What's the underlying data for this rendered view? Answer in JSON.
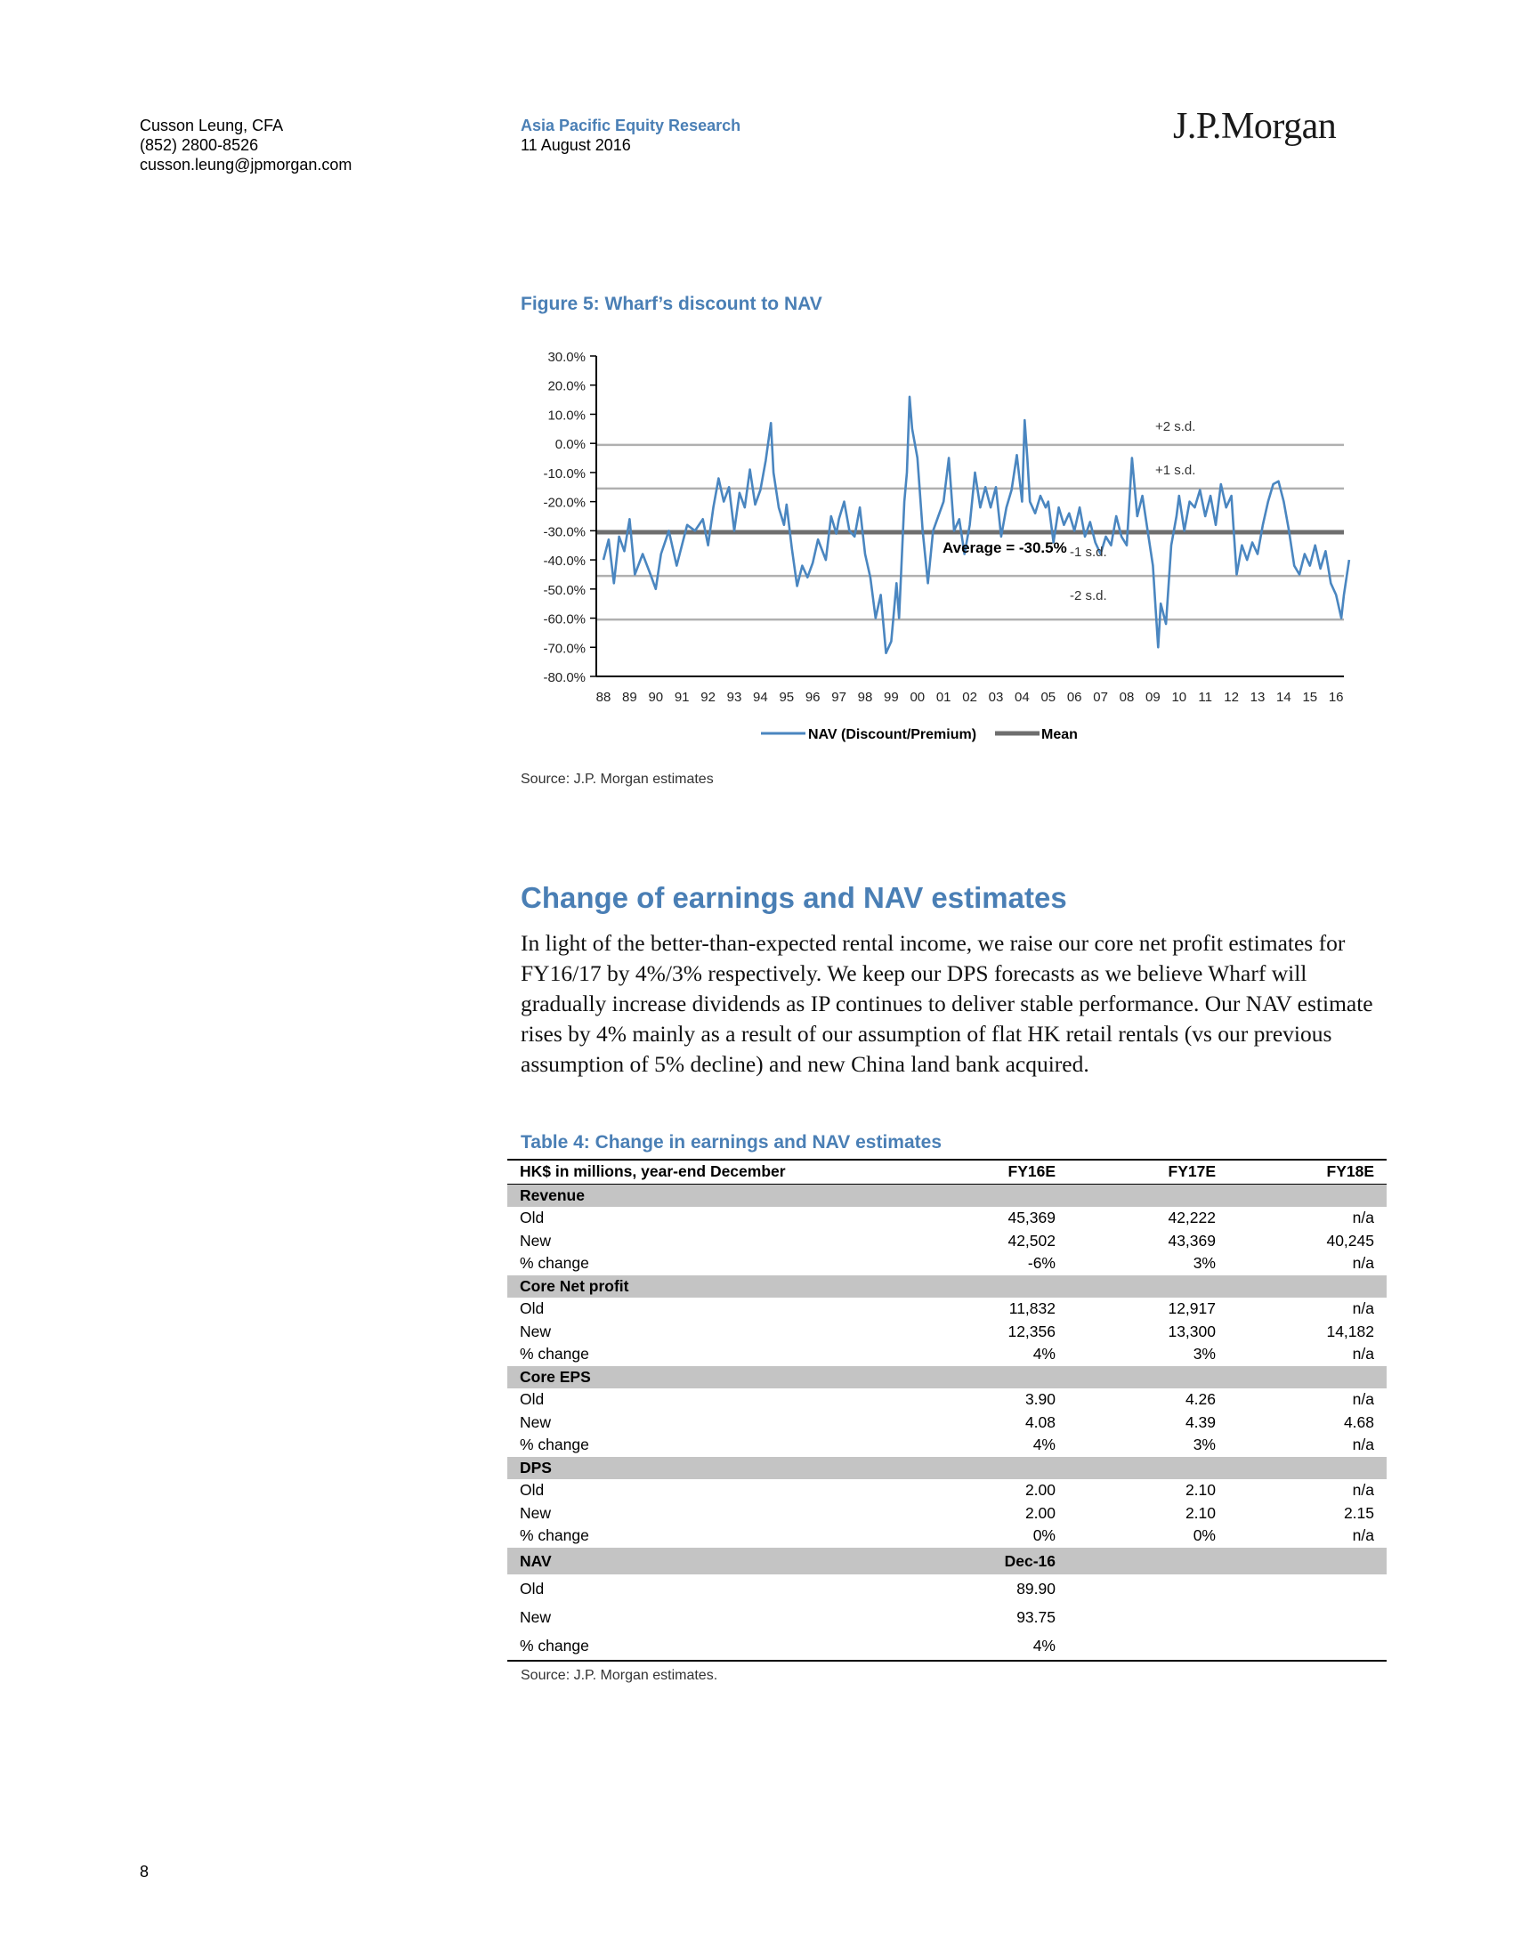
{
  "header": {
    "author": "Cusson Leung, CFA",
    "phone": "(852) 2800-8526",
    "email": "cusson.leung@jpmorgan.com",
    "department": "Asia Pacific Equity Research",
    "date": "11 August 2016",
    "logo_text": "J.P.Morgan"
  },
  "figure": {
    "title": "Figure 5: Wharf’s discount to NAV",
    "source": "Source: J.P. Morgan estimates"
  },
  "chart_data": {
    "type": "line",
    "ylim": [
      -80,
      30
    ],
    "y_ticks": [
      "30.0%",
      "20.0%",
      "10.0%",
      "0.0%",
      "-10.0%",
      "-20.0%",
      "-30.0%",
      "-40.0%",
      "-50.0%",
      "-60.0%",
      "-70.0%",
      "-80.0%"
    ],
    "x_ticks": [
      "88",
      "89",
      "90",
      "91",
      "92",
      "93",
      "94",
      "95",
      "96",
      "97",
      "98",
      "99",
      "00",
      "01",
      "02",
      "03",
      "04",
      "05",
      "06",
      "07",
      "08",
      "09",
      "10",
      "11",
      "12",
      "13",
      "14",
      "15",
      "16"
    ],
    "xlim": [
      1988,
      2016.5
    ],
    "bands": [
      {
        "label": "+2 s.d.",
        "value": -0.5
      },
      {
        "label": "+1 s.d.",
        "value": -15.5
      },
      {
        "label": "-1 s.d.",
        "value": -45.5
      },
      {
        "label": "-2 s.d.",
        "value": -60.5
      }
    ],
    "mean": {
      "value": -30.5,
      "label": "Average = -30.5%"
    },
    "legend": [
      "NAV (Discount/Premium)",
      "Mean"
    ],
    "legend_position": "bottom",
    "colors": {
      "series": "#4a86c0",
      "mean": "#6e6e6e",
      "band": "#b0b0b0"
    },
    "series": [
      {
        "name": "NAV (Discount/Premium)",
        "points": [
          [
            1988.0,
            -40
          ],
          [
            1988.2,
            -33
          ],
          [
            1988.4,
            -48
          ],
          [
            1988.6,
            -32
          ],
          [
            1988.8,
            -37
          ],
          [
            1989.0,
            -26
          ],
          [
            1989.2,
            -45
          ],
          [
            1989.5,
            -38
          ],
          [
            1989.8,
            -45
          ],
          [
            1990.0,
            -50
          ],
          [
            1990.2,
            -38
          ],
          [
            1990.5,
            -30
          ],
          [
            1990.8,
            -42
          ],
          [
            1991.0,
            -35
          ],
          [
            1991.2,
            -28
          ],
          [
            1991.5,
            -30
          ],
          [
            1991.8,
            -26
          ],
          [
            1992.0,
            -35
          ],
          [
            1992.2,
            -22
          ],
          [
            1992.4,
            -12
          ],
          [
            1992.6,
            -20
          ],
          [
            1992.8,
            -15
          ],
          [
            1993.0,
            -30
          ],
          [
            1993.2,
            -17
          ],
          [
            1993.4,
            -22
          ],
          [
            1993.6,
            -9
          ],
          [
            1993.8,
            -21
          ],
          [
            1994.0,
            -16
          ],
          [
            1994.2,
            -6
          ],
          [
            1994.4,
            7
          ],
          [
            1994.5,
            -10
          ],
          [
            1994.7,
            -22
          ],
          [
            1994.9,
            -28
          ],
          [
            1995.0,
            -21
          ],
          [
            1995.2,
            -36
          ],
          [
            1995.4,
            -49
          ],
          [
            1995.6,
            -42
          ],
          [
            1995.8,
            -46
          ],
          [
            1996.0,
            -41
          ],
          [
            1996.2,
            -33
          ],
          [
            1996.5,
            -40
          ],
          [
            1996.7,
            -25
          ],
          [
            1996.9,
            -31
          ],
          [
            1997.0,
            -26
          ],
          [
            1997.2,
            -20
          ],
          [
            1997.4,
            -30
          ],
          [
            1997.6,
            -32
          ],
          [
            1997.8,
            -22
          ],
          [
            1998.0,
            -38
          ],
          [
            1998.2,
            -46
          ],
          [
            1998.4,
            -60
          ],
          [
            1998.6,
            -52
          ],
          [
            1998.8,
            -72
          ],
          [
            1999.0,
            -68
          ],
          [
            1999.2,
            -48
          ],
          [
            1999.3,
            -60
          ],
          [
            1999.5,
            -20
          ],
          [
            1999.6,
            -10
          ],
          [
            1999.7,
            16
          ],
          [
            1999.8,
            5
          ],
          [
            2000.0,
            -5
          ],
          [
            2000.2,
            -30
          ],
          [
            2000.4,
            -48
          ],
          [
            2000.6,
            -30
          ],
          [
            2000.8,
            -25
          ],
          [
            2001.0,
            -20
          ],
          [
            2001.2,
            -5
          ],
          [
            2001.4,
            -30
          ],
          [
            2001.6,
            -26
          ],
          [
            2001.8,
            -38
          ],
          [
            2002.0,
            -28
          ],
          [
            2002.2,
            -10
          ],
          [
            2002.4,
            -22
          ],
          [
            2002.6,
            -15
          ],
          [
            2002.8,
            -22
          ],
          [
            2003.0,
            -15
          ],
          [
            2003.2,
            -32
          ],
          [
            2003.4,
            -22
          ],
          [
            2003.6,
            -16
          ],
          [
            2003.8,
            -4
          ],
          [
            2004.0,
            -20
          ],
          [
            2004.1,
            8
          ],
          [
            2004.2,
            -5
          ],
          [
            2004.3,
            -20
          ],
          [
            2004.5,
            -24
          ],
          [
            2004.7,
            -18
          ],
          [
            2004.9,
            -22
          ],
          [
            2005.0,
            -20
          ],
          [
            2005.2,
            -34
          ],
          [
            2005.4,
            -22
          ],
          [
            2005.6,
            -28
          ],
          [
            2005.8,
            -24
          ],
          [
            2006.0,
            -30
          ],
          [
            2006.2,
            -22
          ],
          [
            2006.4,
            -32
          ],
          [
            2006.6,
            -27
          ],
          [
            2006.8,
            -34
          ],
          [
            2007.0,
            -38
          ],
          [
            2007.2,
            -32
          ],
          [
            2007.4,
            -35
          ],
          [
            2007.6,
            -25
          ],
          [
            2007.8,
            -32
          ],
          [
            2008.0,
            -35
          ],
          [
            2008.2,
            -5
          ],
          [
            2008.4,
            -25
          ],
          [
            2008.6,
            -18
          ],
          [
            2008.8,
            -30
          ],
          [
            2009.0,
            -42
          ],
          [
            2009.1,
            -56
          ],
          [
            2009.2,
            -70
          ],
          [
            2009.3,
            -55
          ],
          [
            2009.5,
            -62
          ],
          [
            2009.7,
            -35
          ],
          [
            2009.9,
            -25
          ],
          [
            2010.0,
            -18
          ],
          [
            2010.2,
            -30
          ],
          [
            2010.4,
            -20
          ],
          [
            2010.6,
            -22
          ],
          [
            2010.8,
            -16
          ],
          [
            2011.0,
            -25
          ],
          [
            2011.2,
            -18
          ],
          [
            2011.4,
            -28
          ],
          [
            2011.6,
            -14
          ],
          [
            2011.8,
            -22
          ],
          [
            2012.0,
            -18
          ],
          [
            2012.2,
            -45
          ],
          [
            2012.4,
            -35
          ],
          [
            2012.6,
            -40
          ],
          [
            2012.8,
            -34
          ],
          [
            2013.0,
            -38
          ],
          [
            2013.2,
            -28
          ],
          [
            2013.4,
            -20
          ],
          [
            2013.6,
            -14
          ],
          [
            2013.8,
            -13
          ],
          [
            2014.0,
            -20
          ],
          [
            2014.2,
            -30
          ],
          [
            2014.4,
            -42
          ],
          [
            2014.6,
            -45
          ],
          [
            2014.8,
            -38
          ],
          [
            2015.0,
            -42
          ],
          [
            2015.2,
            -35
          ],
          [
            2015.4,
            -43
          ],
          [
            2015.6,
            -37
          ],
          [
            2015.8,
            -48
          ],
          [
            2016.0,
            -52
          ],
          [
            2016.2,
            -60
          ],
          [
            2016.3,
            -52
          ],
          [
            2016.5,
            -40
          ]
        ]
      }
    ]
  },
  "section": {
    "heading": "Change of earnings and NAV estimates",
    "paragraph": "In light of the better-than-expected rental income, we raise our core net profit estimates for FY16/17 by 4%/3% respectively. We keep our DPS forecasts as we believe Wharf will gradually increase dividends as IP continues to deliver stable performance. Our NAV estimate rises by 4% mainly as a result of our assumption of flat HK retail rentals (vs our previous assumption of 5% decline) and new China land bank acquired."
  },
  "table": {
    "title": "Table 4: Change in earnings and NAV estimates",
    "header": [
      "HK$ in millions, year-end December",
      "FY16E",
      "FY17E",
      "FY18E"
    ],
    "groups": [
      {
        "name": "Revenue",
        "rows": [
          [
            "Old",
            "45,369",
            "42,222",
            "n/a"
          ],
          [
            "New",
            "42,502",
            "43,369",
            "40,245"
          ],
          [
            "% change",
            "-6%",
            "3%",
            "n/a"
          ]
        ]
      },
      {
        "name": "Core Net profit",
        "rows": [
          [
            "Old",
            "11,832",
            "12,917",
            "n/a"
          ],
          [
            "New",
            "12,356",
            "13,300",
            "14,182"
          ],
          [
            "% change",
            "4%",
            "3%",
            "n/a"
          ]
        ]
      },
      {
        "name": "Core EPS",
        "rows": [
          [
            "Old",
            "3.90",
            "4.26",
            "n/a"
          ],
          [
            "New",
            "4.08",
            "4.39",
            "4.68"
          ],
          [
            "% change",
            "4%",
            "3%",
            "n/a"
          ]
        ]
      },
      {
        "name": "DPS",
        "rows": [
          [
            "Old",
            "2.00",
            "2.10",
            "n/a"
          ],
          [
            "New",
            "2.00",
            "2.10",
            "2.15"
          ],
          [
            "% change",
            "0%",
            "0%",
            "n/a"
          ]
        ]
      }
    ],
    "nav": {
      "label": "NAV",
      "col": "Dec-16",
      "rows": [
        [
          "Old",
          "89.90"
        ],
        [
          "New",
          "93.75"
        ],
        [
          "% change",
          "4%"
        ]
      ]
    },
    "source": "Source: J.P. Morgan estimates."
  },
  "page_number": "8"
}
